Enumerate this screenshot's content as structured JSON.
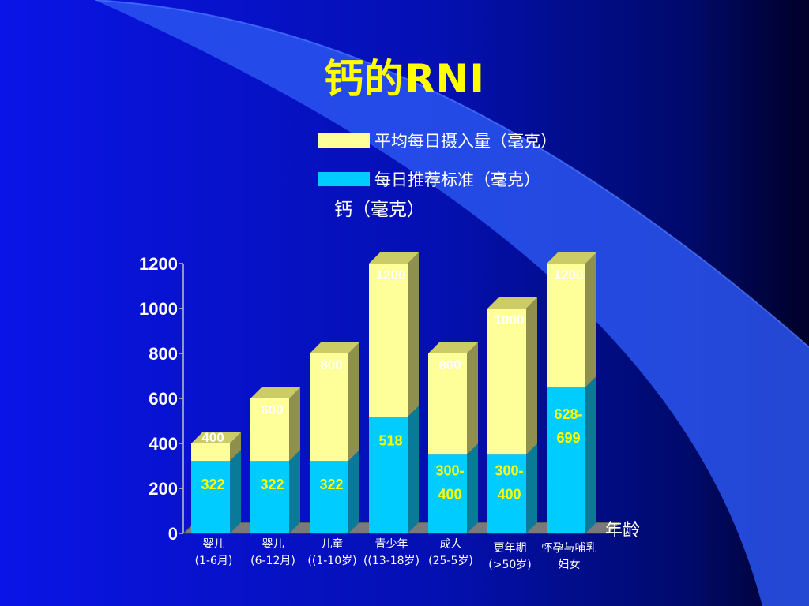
{
  "slide": {
    "title": "钙的RNI",
    "colors": {
      "background_left": "#0a14e6",
      "background_right": "#000033",
      "title": "#ffff00",
      "bar_top": "#ffff99",
      "bar_bottom": "#00ccff"
    }
  },
  "legend": {
    "items": [
      {
        "label": "平均每日摄入量（毫克）",
        "color": "#ffff99"
      },
      {
        "label": "每日推荐标准（毫克）",
        "color": "#00ccff"
      }
    ]
  },
  "chart_data": {
    "type": "bar",
    "stacked": true,
    "three_d": true,
    "ylabel": "钙（毫克）",
    "xlabel": "年龄",
    "ylim": [
      0,
      1200
    ],
    "yticks": [
      0,
      200,
      400,
      600,
      800,
      1000,
      1200
    ],
    "categories": [
      [
        "婴儿",
        "(1-6月)"
      ],
      [
        "婴儿",
        "(6-12月)"
      ],
      [
        "儿童",
        "((1-10岁)"
      ],
      [
        "青少年",
        "((13-18岁)"
      ],
      [
        "成人",
        "(25-5岁)"
      ],
      [
        "更年期",
        "(>50岁)"
      ],
      [
        "怀孕与哺乳",
        "妇女"
      ]
    ],
    "series": [
      {
        "name": "每日推荐标准（毫克）",
        "values": [
          322,
          322,
          322,
          518,
          350,
          350,
          650
        ],
        "labels": [
          [
            "322"
          ],
          [
            "322"
          ],
          [
            "322"
          ],
          [
            "518"
          ],
          [
            "300-",
            "400"
          ],
          [
            "300-",
            "400"
          ],
          [
            "628-",
            "699"
          ]
        ]
      },
      {
        "name": "平均每日摄入量（毫克）",
        "values": [
          78,
          278,
          478,
          682,
          450,
          650,
          550
        ],
        "labels": [
          [
            "400"
          ],
          [
            "600"
          ],
          [
            "800"
          ],
          [
            "1200"
          ],
          [
            "800"
          ],
          [
            "1000"
          ],
          [
            "1200"
          ]
        ]
      }
    ],
    "totals": [
      400,
      600,
      800,
      1200,
      800,
      1000,
      1200
    ]
  }
}
